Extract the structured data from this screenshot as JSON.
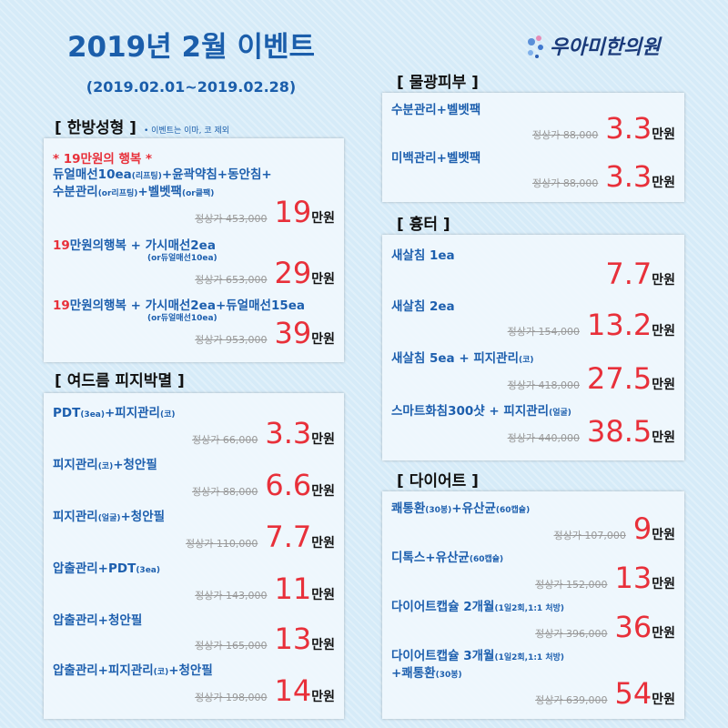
{
  "header": {
    "title": "2019년 2월 이벤트",
    "period": "(2019.02.01~2019.02.28)",
    "logo": "우아미한의원"
  },
  "columns": [
    {
      "sections": [
        {
          "heading": "[ 한방성형 ]",
          "note": "• 이벤트는 이마, 코 제외",
          "items": [
            {
              "lines": [
                [
                  {
                    "text": "* 19만원의 행복 *",
                    "style": "red"
                  }
                ],
                [
                  {
                    "text": "듀얼매선10ea"
                  },
                  {
                    "text": "(리프팅)",
                    "style": "small"
                  },
                  {
                    "text": "+윤곽약침+동안침+"
                  }
                ],
                [
                  {
                    "text": "수분관리"
                  },
                  {
                    "text": "(or리프팅)",
                    "style": "small"
                  },
                  {
                    "text": "+벨벳팩"
                  },
                  {
                    "text": "(or클팩)",
                    "style": "small"
                  }
                ]
              ],
              "regular": "정상가 453,000",
              "price": 19,
              "unit": "만원"
            },
            {
              "lines": [
                [
                  {
                    "text": "19",
                    "style": "red"
                  },
                  {
                    "text": "만원의행복 + 가시매선2ea"
                  }
                ],
                [
                  {
                    "text": "(or듀얼매선10ea)",
                    "style": "sub"
                  }
                ]
              ],
              "regular": "정상가 653,000",
              "price": 29,
              "unit": "만원"
            },
            {
              "lines": [
                [
                  {
                    "text": "19",
                    "style": "red"
                  },
                  {
                    "text": "만원의행복 + 가시매선2ea+듀얼매선15ea"
                  }
                ],
                [
                  {
                    "text": "(or듀얼매선10ea)",
                    "style": "sub"
                  }
                ]
              ],
              "regular": "정상가 953,000",
              "price": 39,
              "unit": "만원"
            }
          ]
        },
        {
          "heading": "[ 여드름 피지박멸 ]",
          "items": [
            {
              "lines": [
                [
                  {
                    "text": "PDT"
                  },
                  {
                    "text": "(3ea)",
                    "style": "small"
                  },
                  {
                    "text": "+피지관리"
                  },
                  {
                    "text": "(코)",
                    "style": "small"
                  }
                ]
              ],
              "regular": "정상가 66,000",
              "price": 3.3,
              "unit": "만원"
            },
            {
              "lines": [
                [
                  {
                    "text": "피지관리"
                  },
                  {
                    "text": "(코)",
                    "style": "small"
                  },
                  {
                    "text": "+청안필"
                  }
                ]
              ],
              "regular": "정상가 88,000",
              "price": 6.6,
              "unit": "만원"
            },
            {
              "lines": [
                [
                  {
                    "text": "피지관리"
                  },
                  {
                    "text": "(얼굴)",
                    "style": "small"
                  },
                  {
                    "text": "+청안필"
                  }
                ]
              ],
              "regular": "정상가 110,000",
              "price": 7.7,
              "unit": "만원"
            },
            {
              "lines": [
                [
                  {
                    "text": "압출관리+PDT"
                  },
                  {
                    "text": "(3ea)",
                    "style": "small"
                  }
                ]
              ],
              "regular": "정상가 143,000",
              "price": 11,
              "unit": "만원"
            },
            {
              "lines": [
                [
                  {
                    "text": "압출관리+청안필"
                  }
                ]
              ],
              "regular": "정상가 165,000",
              "price": 13,
              "unit": "만원"
            },
            {
              "lines": [
                [
                  {
                    "text": "압출관리+피지관리"
                  },
                  {
                    "text": "(코)",
                    "style": "small"
                  },
                  {
                    "text": "+청안필"
                  }
                ]
              ],
              "regular": "정상가 198,000",
              "price": 14,
              "unit": "만원"
            }
          ]
        }
      ]
    },
    {
      "sections": [
        {
          "heading": "[ 물광피부 ]",
          "items": [
            {
              "lines": [
                [
                  {
                    "text": "수분관리+벨벳팩"
                  }
                ]
              ],
              "regular": "정상가 88,000",
              "price": 3.3,
              "unit": "만원"
            },
            {
              "lines": [
                [
                  {
                    "text": "미백관리+벨벳팩"
                  }
                ]
              ],
              "regular": "정상가 88,000",
              "price": 3.3,
              "unit": "만원"
            }
          ]
        },
        {
          "heading": "[ 흉터 ]",
          "items": [
            {
              "lines": [
                [
                  {
                    "text": "새살침 1ea"
                  }
                ]
              ],
              "price": 7.7,
              "unit": "만원"
            },
            {
              "lines": [
                [
                  {
                    "text": "새살침 2ea"
                  }
                ]
              ],
              "regular": "정상가 154,000",
              "price": 13.2,
              "unit": "만원"
            },
            {
              "lines": [
                [
                  {
                    "text": "새살침 5ea + 피지관리"
                  },
                  {
                    "text": "(코)",
                    "style": "small"
                  }
                ]
              ],
              "regular": "정상가 418,000",
              "price": 27.5,
              "unit": "만원"
            },
            {
              "lines": [
                [
                  {
                    "text": "스마트화침300샷 + 피지관리"
                  },
                  {
                    "text": "(얼굴)",
                    "style": "small"
                  }
                ]
              ],
              "regular": "정상가 440,000",
              "price": 38.5,
              "unit": "만원"
            }
          ]
        },
        {
          "heading": "[ 다이어트 ]",
          "items": [
            {
              "lines": [
                [
                  {
                    "text": "쾌통환"
                  },
                  {
                    "text": "(30봉)",
                    "style": "small"
                  },
                  {
                    "text": "+유산균"
                  },
                  {
                    "text": "(60캡슐)",
                    "style": "small"
                  }
                ]
              ],
              "regular": "정상가 107,000",
              "price": 9,
              "unit": "만원"
            },
            {
              "lines": [
                [
                  {
                    "text": "디톡스+유산균"
                  },
                  {
                    "text": "(60캡슐)",
                    "style": "small"
                  }
                ]
              ],
              "regular": "정상가 152,000",
              "price": 13,
              "unit": "만원"
            },
            {
              "lines": [
                [
                  {
                    "text": "다이어트캡슐 2개월"
                  },
                  {
                    "text": "(1일2회,1:1 처방)",
                    "style": "small"
                  }
                ]
              ],
              "regular": "정상가 396,000",
              "price": 36,
              "unit": "만원"
            },
            {
              "lines": [
                [
                  {
                    "text": "다이어트캡슐 3개월"
                  },
                  {
                    "text": "(1일2회,1:1 처방)",
                    "style": "small"
                  }
                ],
                [
                  {
                    "text": "+쾌통환"
                  },
                  {
                    "text": "(30봉)",
                    "style": "small"
                  }
                ]
              ],
              "regular": "정상가 639,000",
              "price": 54,
              "unit": "만원"
            }
          ]
        }
      ]
    }
  ]
}
